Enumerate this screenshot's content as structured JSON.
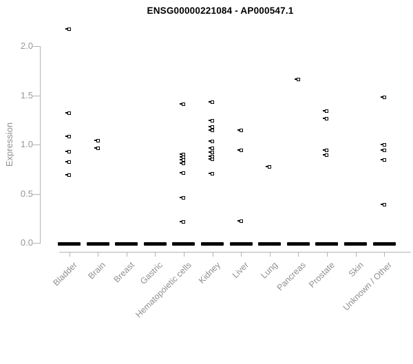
{
  "title": "ENSG00000221084 - AP000547.1",
  "colors": {
    "title": "#000000",
    "axis_line": "#b3b3b3",
    "tick_text": "#979797",
    "category_text": "#8f8f8f",
    "marker": "#000000",
    "background": "#ffffff"
  },
  "chart_data": {
    "type": "scatter",
    "title": "ENSG00000221084 - AP000547.1",
    "xlabel": "",
    "ylabel": "Expression",
    "ylim": [
      0.0,
      2.2
    ],
    "yticks": [
      "0.0",
      "0.5",
      "1.0",
      "1.5",
      "2.0"
    ],
    "grid": false,
    "legend": false,
    "marker": "open-square-black",
    "zero_dash_all_categories": true,
    "categories": [
      "Bladder",
      "Brain",
      "Breast",
      "Gastric",
      "Hematopoietic cells",
      "Kidney",
      "Liver",
      "Lung",
      "Pancreas",
      "Prostate",
      "Skin",
      "Unknown / Other"
    ],
    "series": [
      {
        "name": "Bladder",
        "values": [
          2.17,
          1.32,
          1.08,
          0.93,
          0.82,
          0.69
        ]
      },
      {
        "name": "Brain",
        "values": [
          1.04,
          0.96
        ]
      },
      {
        "name": "Breast",
        "values": []
      },
      {
        "name": "Gastric",
        "values": []
      },
      {
        "name": "Hematopoietic cells",
        "values": [
          1.41,
          0.9,
          0.87,
          0.84,
          0.81,
          0.71,
          0.46,
          0.21
        ]
      },
      {
        "name": "Kidney",
        "values": [
          1.43,
          1.24,
          1.18,
          1.14,
          1.03,
          0.96,
          0.92,
          0.88,
          0.85,
          0.7
        ]
      },
      {
        "name": "Liver",
        "values": [
          1.14,
          0.94,
          0.22
        ]
      },
      {
        "name": "Lung",
        "values": [
          0.77
        ]
      },
      {
        "name": "Pancreas",
        "values": [
          1.66
        ]
      },
      {
        "name": "Prostate",
        "values": [
          1.34,
          1.26,
          0.94,
          0.89
        ]
      },
      {
        "name": "Skin",
        "values": []
      },
      {
        "name": "Unknown / Other",
        "values": [
          1.48,
          1.0,
          0.94,
          0.84,
          0.39
        ]
      }
    ]
  }
}
